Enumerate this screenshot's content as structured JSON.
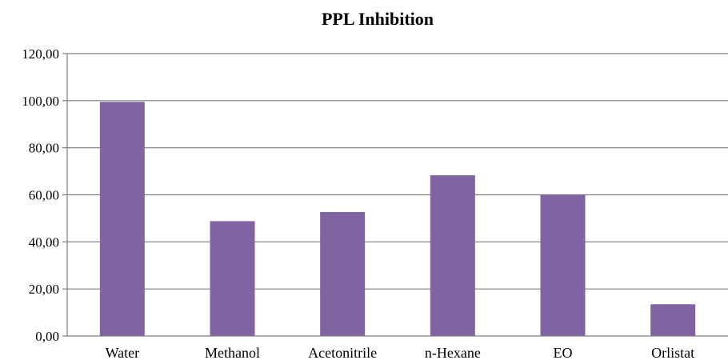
{
  "chart_data": {
    "type": "bar",
    "title": "PPL Inhibition",
    "categories": [
      "Water",
      "Methanol",
      "Acetonitrile",
      "n-Hexane",
      "EO",
      "Orlistat"
    ],
    "values": [
      99.5,
      48.8,
      52.7,
      68.3,
      60.0,
      13.5
    ],
    "ylim": [
      0,
      120
    ],
    "yticks": [
      0,
      20,
      40,
      60,
      80,
      100,
      120
    ],
    "ytick_labels": [
      "0,00",
      "20,00",
      "40,00",
      "60,00",
      "80,00",
      "100,00",
      "120,00"
    ],
    "grid": true,
    "bar_color": "#8064a2",
    "xlabel": "",
    "ylabel": ""
  }
}
